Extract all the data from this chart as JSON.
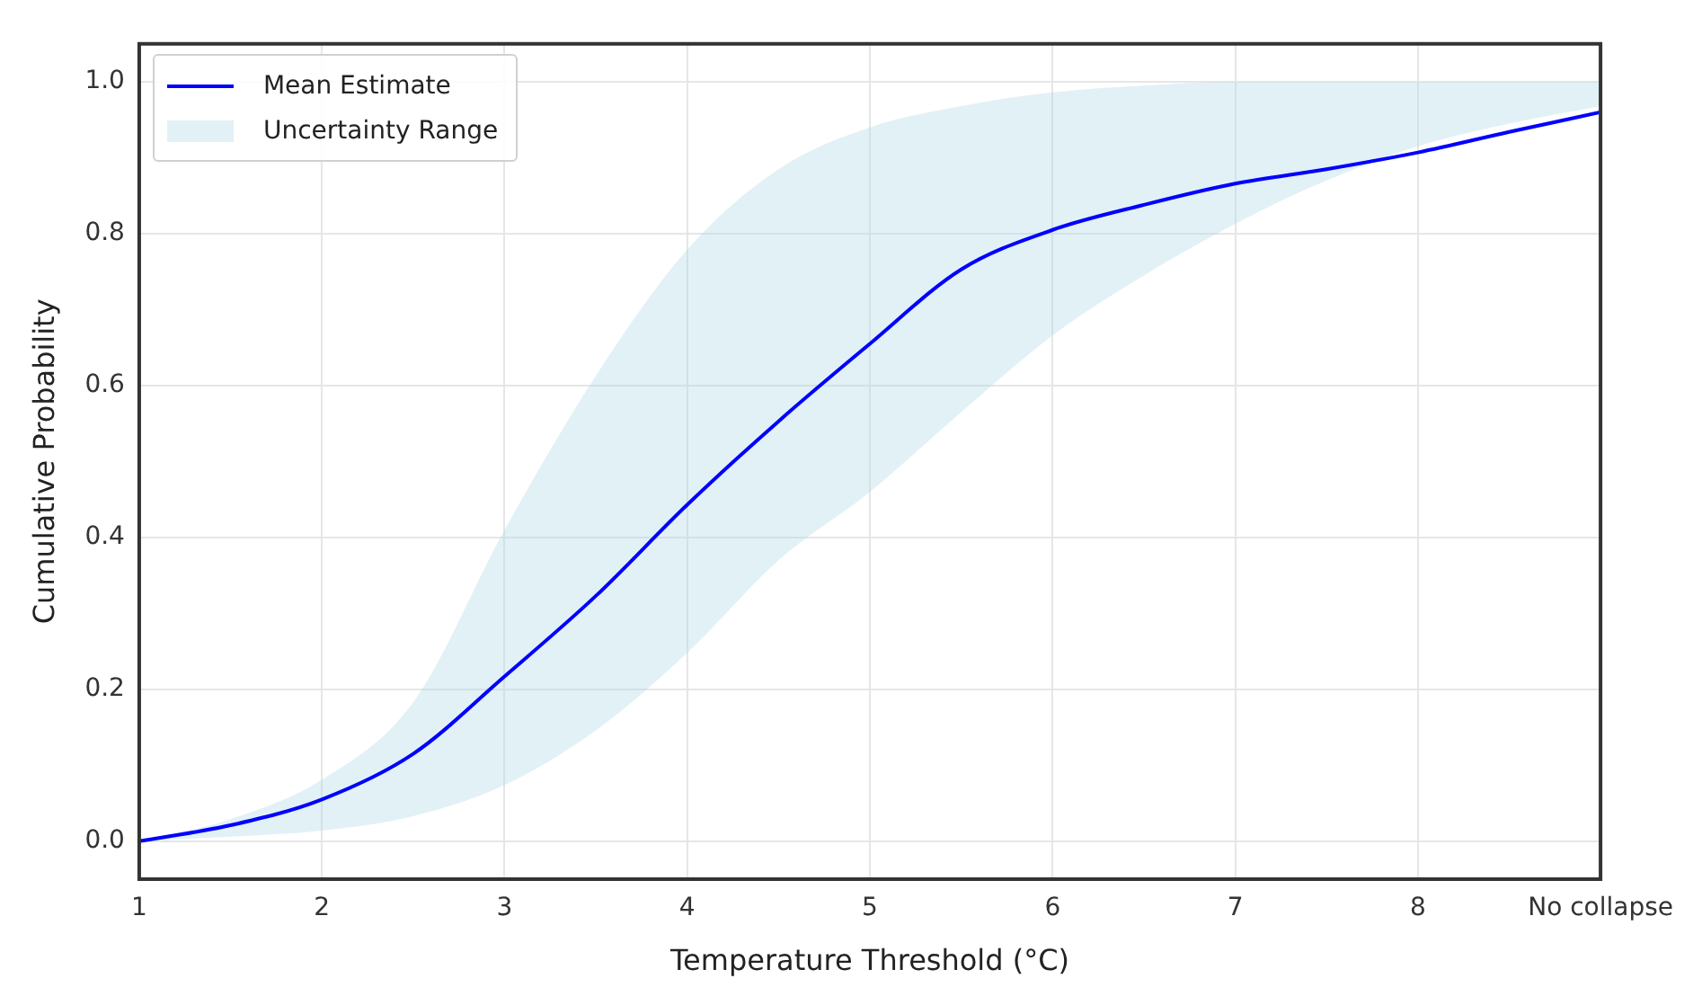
{
  "chart_data": {
    "type": "line",
    "xlabel": "Temperature Threshold (°C)",
    "ylabel": "Cumulative Probability",
    "x": [
      1,
      1.5,
      2,
      2.5,
      3,
      3.5,
      4,
      4.5,
      5,
      5.5,
      6,
      6.5,
      7,
      7.5,
      8,
      8.5,
      9
    ],
    "series": [
      {
        "name": "Mean Estimate",
        "color": "#0000ff",
        "values": [
          0,
          0.021,
          0.055,
          0.115,
          0.217,
          0.323,
          0.443,
          0.553,
          0.655,
          0.753,
          0.805,
          0.838,
          0.866,
          0.885,
          0.907,
          0.934,
          0.96
        ],
        "lower": [
          0,
          0.006,
          0.014,
          0.033,
          0.074,
          0.146,
          0.248,
          0.37,
          0.46,
          0.565,
          0.666,
          0.745,
          0.813,
          0.87,
          0.915,
          0.945,
          0.968
        ],
        "upper": [
          0,
          0.029,
          0.081,
          0.183,
          0.41,
          0.613,
          0.779,
          0.885,
          0.94,
          0.968,
          0.986,
          0.995,
          1,
          1,
          1,
          1,
          1
        ]
      }
    ],
    "annotations": [
      "Uncertainty Range"
    ],
    "xlim": [
      1,
      9
    ],
    "xticks": [
      1,
      2,
      3,
      4,
      5,
      6,
      7,
      8,
      {
        "value": 9,
        "label": "No collapse"
      }
    ],
    "ylim": [
      -0.05,
      1.05
    ],
    "yticks": [
      {
        "value": 0,
        "label": "0.0"
      },
      {
        "value": 0.2,
        "label": "0.2"
      },
      {
        "value": 0.4,
        "label": "0.4"
      },
      {
        "value": 0.6,
        "label": "0.6"
      },
      {
        "value": 0.8,
        "label": "0.8"
      },
      {
        "value": 1,
        "label": "1.0"
      }
    ],
    "grid": true,
    "legend": "top left",
    "marker": "none",
    "line_style": "solid"
  }
}
